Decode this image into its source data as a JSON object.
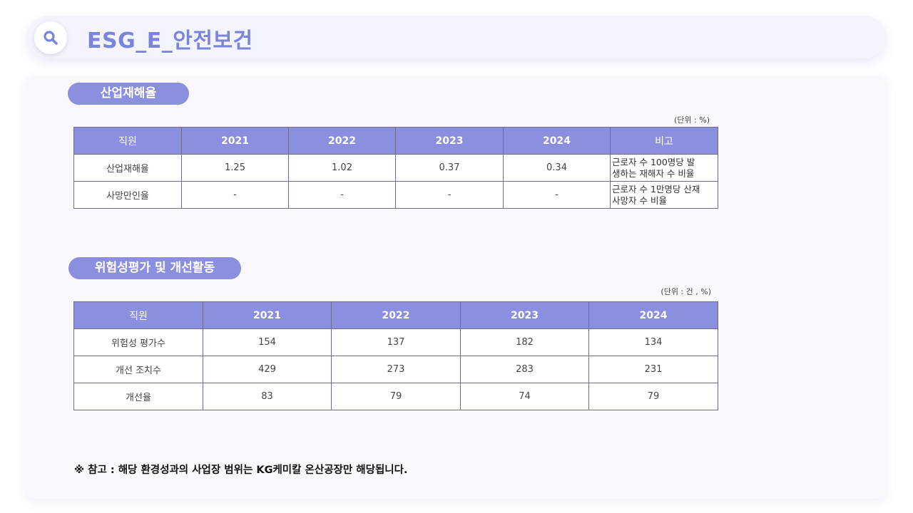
{
  "header": {
    "title": "ESG_E_안전보건",
    "icon": "search-icon",
    "accent": "#7b84dc"
  },
  "section1": {
    "pill": "산업재해율",
    "unit": "(단위 : %)",
    "columns": [
      "직원",
      "2021",
      "2022",
      "2023",
      "2024",
      "비고"
    ],
    "rows": [
      {
        "label": "산업재해율",
        "values": [
          "1.25",
          "1.02",
          "0.37",
          "0.34"
        ],
        "note": [
          "근로자 수 100명당 발",
          "생하는 재해자 수 비율"
        ]
      },
      {
        "label": "사망만인율",
        "values": [
          "-",
          "-",
          "-",
          "-"
        ],
        "note": [
          "근로자 수 1만명당 산재",
          "사망자 수 비율"
        ]
      }
    ]
  },
  "section2": {
    "pill": "위험성평가 및 개선활동",
    "unit": "(단위 : 건 , %)",
    "columns": [
      "직원",
      "2021",
      "2022",
      "2023",
      "2024"
    ],
    "rows": [
      {
        "label": "위험성 평가수",
        "values": [
          "154",
          "137",
          "182",
          "134"
        ]
      },
      {
        "label": "개선 조치수",
        "values": [
          "429",
          "273",
          "283",
          "231"
        ]
      },
      {
        "label": "개선율",
        "values": [
          "83",
          "79",
          "74",
          "79"
        ]
      }
    ]
  },
  "footnote": "※ 참고 : 해당 환경성과의 사업장 범위는 KG케미칼 온산공장만 해당됩니다."
}
